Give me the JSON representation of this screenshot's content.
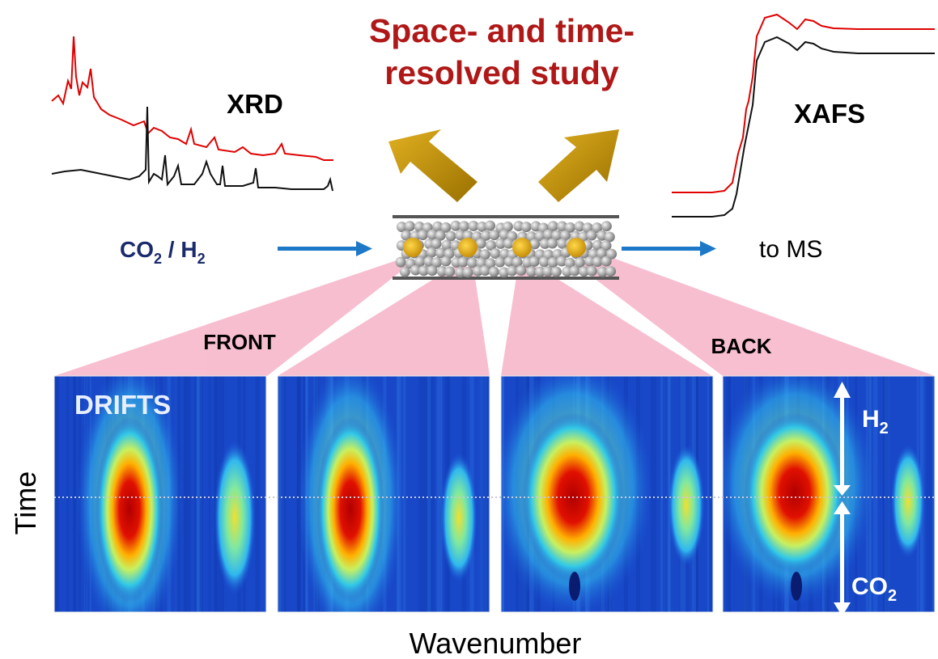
{
  "title": [
    "Space- and time-",
    "resolved study"
  ],
  "xrd_label": "XRD",
  "xafs_label": "XAFS",
  "feed_label": [
    "CO",
    "2",
    " / H",
    "2"
  ],
  "outlet_label": "to MS",
  "front_label": "FRONT",
  "back_label": "BACK",
  "drifts_label": "DRIFTS",
  "h2_label": [
    "H",
    "2"
  ],
  "co2_label": [
    "CO",
    "2"
  ],
  "y_axis_label": "Time",
  "x_axis_label": "Wavenumber"
}
